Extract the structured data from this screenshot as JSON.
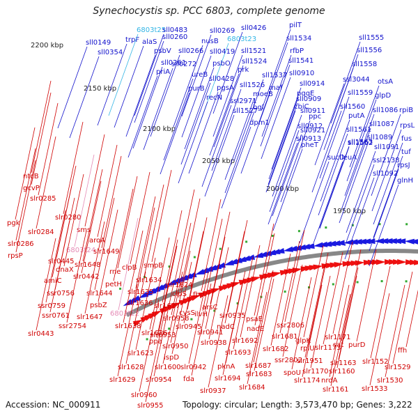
{
  "title": "Synechocystis sp. PCC 6803, complete genome",
  "footer": {
    "accession": "Accession: NC_000911",
    "summary": "Topology: circular; Length: 3,573,470 bp; Genes: 3,222"
  },
  "colors": {
    "forward_label": "#1010cc",
    "forward_arrow": "#1a1ae0",
    "reverse_label": "#d00000",
    "reverse_arrow": "#ee1111",
    "rna_label_forward": "#33b5e5",
    "rna_label_reverse": "#e58ab5",
    "ring": "#888888",
    "tick": "#33aa33"
  },
  "scale_labels": [
    "2200 kbp",
    "2150 kbp",
    "2100 kbp",
    "2050 kbp",
    "2000 kbp",
    "1950 kbp"
  ],
  "forward_genes": [
    "sll0149",
    "sll0354",
    "trpF",
    "6803t25",
    "alaS",
    "sll0483",
    "sll0260",
    "psbV",
    "sll0266",
    "sll0261",
    "priA",
    "sll0272",
    "ureB",
    "purB",
    "sll0269",
    "nusB",
    "6803t23",
    "sll0426",
    "sll0419",
    "psbO",
    "sll1521",
    "prk",
    "sll0428",
    "pgsA",
    "recN",
    "sll1524",
    "sll1526",
    "ssl2971",
    "sll1527",
    "pilT",
    "sll1534",
    "rfbP",
    "sll1541",
    "sll1537",
    "sll0910",
    "maf",
    "moeB",
    "bgl",
    "dpm1",
    "sll0914",
    "sll0909",
    "pqqE",
    "sll0911",
    "cbiC",
    "ppc",
    "sll0912",
    "sll0921",
    "sll0913",
    "pheT",
    "sll1555",
    "sll1556",
    "sll1558",
    "ssl3044",
    "sll1559",
    "sll1560",
    "putA",
    "sll1561",
    "sll1562",
    "sll1563",
    "sucD",
    "leuA",
    "otsA",
    "glpD",
    "sll1086",
    "sll1087",
    "sll1089",
    "sll1091",
    "ssl2138",
    "sll1092",
    "rpiB",
    "rpsL",
    "fus",
    "tuf",
    "rpsJ",
    "glnH"
  ],
  "reverse_genes": [
    "ntcB",
    "gcvP",
    "pgk",
    "slr0285",
    "slr0280",
    "slr0284",
    "slr0286",
    "rpsP",
    "sms",
    "aroA",
    "6803t24",
    "slr0445",
    "slr1649",
    "dnaX",
    "slr1648",
    "rne",
    "amiC",
    "slr0442",
    "clpB",
    "petH",
    "ssr0756",
    "slr1644",
    "ssr0759",
    "psbZ",
    "ssr0761",
    "slr1647",
    "ssr2754",
    "slr0443",
    "smpB",
    "slr1634",
    "slr1635",
    "slr1624",
    "clpS",
    "slr1636",
    "fbp",
    "6803t22",
    "slr1627",
    "cysS",
    "slr1638",
    "slr0958",
    "ilvH",
    "arsC",
    "slr0945",
    "slr0935",
    "nadC",
    "psaE",
    "slr1626",
    "slr0953",
    "slr0941",
    "ppa",
    "slr0950",
    "slr0938",
    "slr1623",
    "ispD",
    "slr1600",
    "slr1628",
    "slr0942",
    "slr0954",
    "slr1629",
    "fda",
    "slr0960",
    "slr0937",
    "slr0955",
    "slr1692",
    "slr1693",
    "pknA",
    "slr1694",
    "slr1687",
    "slr1683",
    "slr1684",
    "nadE",
    "slr1681",
    "slr1682",
    "ssr2806",
    "ssr2802",
    "slr1951",
    "glpK",
    "slr1171",
    "slr1173",
    "spoU",
    "rplU",
    "slr1174",
    "slr1170",
    "slr1163",
    "slr1160",
    "sat",
    "purD",
    "slr1152",
    "nrdA",
    "slr1161",
    "slr1533",
    "ffh",
    "slr1529",
    "slr1530"
  ]
}
